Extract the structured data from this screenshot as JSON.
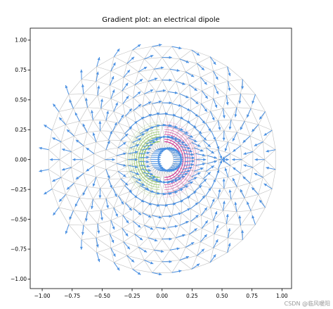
{
  "watermark": "CSDN @临风暖阳",
  "chart_data": {
    "type": "field",
    "title": "Gradient plot: an electrical dipole",
    "xlabel": "",
    "ylabel": "",
    "xlim": [
      -1.1,
      1.08
    ],
    "ylim": [
      -1.08,
      1.1
    ],
    "xticks": [
      -1.0,
      -0.75,
      -0.5,
      -0.25,
      0.0,
      0.25,
      0.5,
      0.75,
      1.0
    ],
    "xtick_labels": [
      "−1.00",
      "−0.75",
      "−0.50",
      "−0.25",
      "0.00",
      "0.25",
      "0.50",
      "0.75",
      "1.00"
    ],
    "yticks": [
      -1.0,
      -0.75,
      -0.5,
      -0.25,
      0.0,
      0.25,
      0.5,
      0.75,
      1.0
    ],
    "ytick_labels": [
      "−1.00",
      "−0.75",
      "−0.50",
      "−0.25",
      "0.00",
      "0.25",
      "0.50",
      "0.75",
      "1.00"
    ],
    "grid": false,
    "mesh": {
      "kind": "triangulated annulus",
      "center": [
        0.0,
        0.0
      ],
      "inner_radius": 0.095,
      "outer_radius": 0.95,
      "n_radii": 10,
      "n_angles": 36,
      "edge_color": "#c0c0c0"
    },
    "dipole": {
      "positive_charge": [
        -0.5,
        0.0
      ],
      "negative_charge": [
        0.5,
        0.0
      ],
      "positive_side_color": "#7fc241",
      "negative_side_color": "#d01c8b"
    },
    "arrow_color": "#4a90e2"
  }
}
